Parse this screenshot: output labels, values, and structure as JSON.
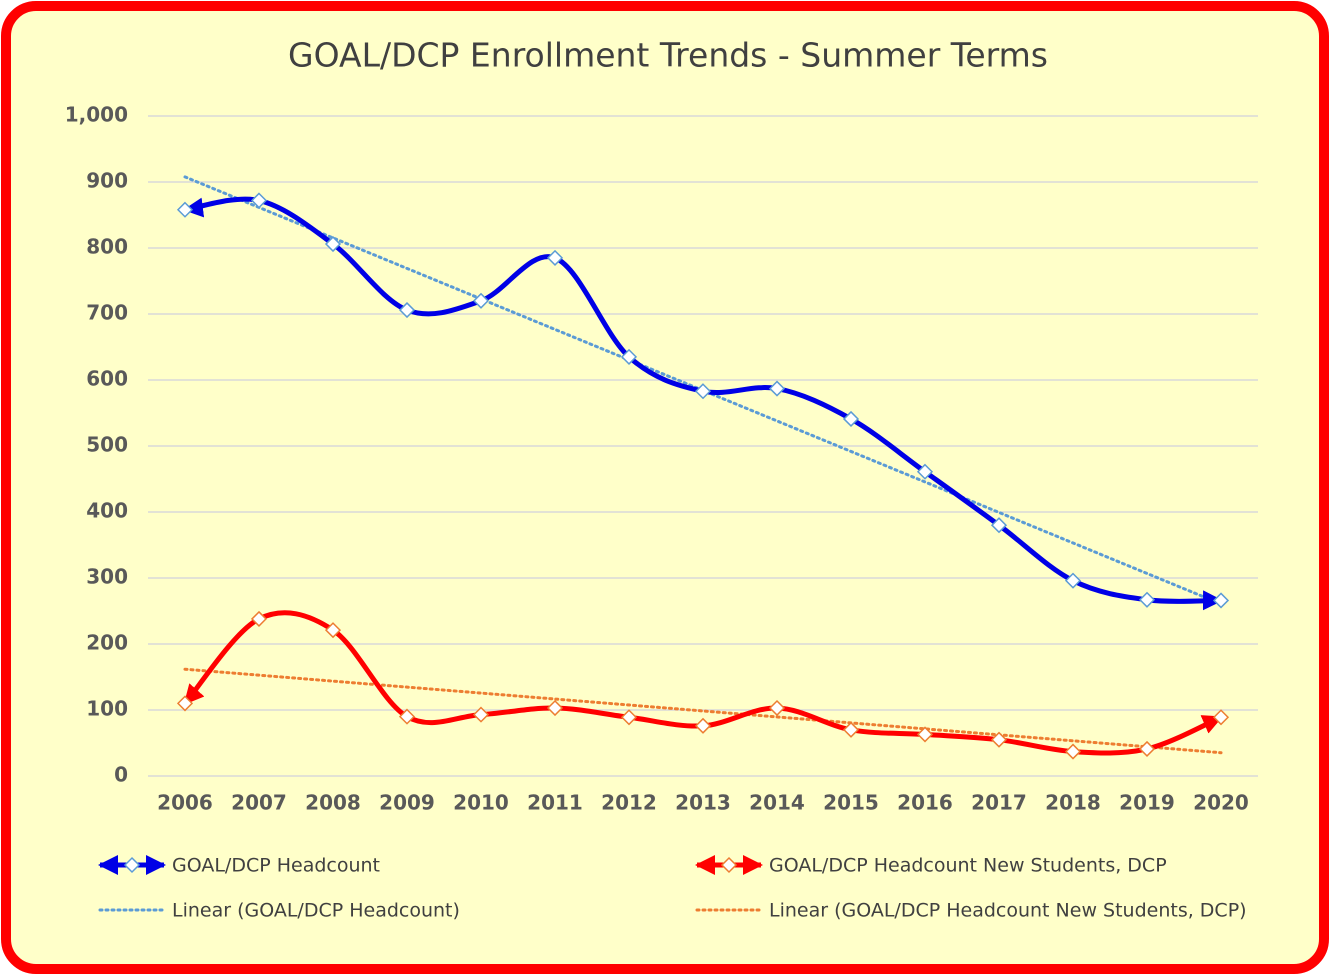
{
  "chart_data": {
    "type": "line",
    "title": "GOAL/DCP Enrollment Trends - Summer Terms",
    "categories": [
      "2006",
      "2007",
      "2008",
      "2009",
      "2010",
      "2011",
      "2012",
      "2013",
      "2014",
      "2015",
      "2016",
      "2017",
      "2018",
      "2019",
      "2020"
    ],
    "series": [
      {
        "name": "GOAL/DCP Headcount",
        "color": "#0000e6",
        "marker_color": "#5b9bd5",
        "values": [
          858,
          872,
          806,
          706,
          720,
          785,
          635,
          583,
          587,
          541,
          461,
          380,
          296,
          267,
          266
        ],
        "trendline": {
          "name": "Linear (GOAL/DCP Headcount)",
          "color": "#5b9bd5"
        }
      },
      {
        "name": "GOAL/DCP Headcount New Students, DCP",
        "color": "#ff0000",
        "marker_color": "#ed7d31",
        "values": [
          110,
          238,
          221,
          90,
          93,
          103,
          89,
          76,
          103,
          70,
          63,
          55,
          37,
          41,
          89
        ],
        "trendline": {
          "name": "Linear (GOAL/DCP Headcount New Students, DCP)",
          "color": "#ed7d31"
        }
      }
    ],
    "ylim": [
      0,
      1000
    ],
    "yticks": [
      0,
      100,
      200,
      300,
      400,
      500,
      600,
      700,
      800,
      900,
      {
        "value": 1000,
        "label": "1,000"
      }
    ],
    "grid": true,
    "smooth": true,
    "legend": "bottom"
  }
}
